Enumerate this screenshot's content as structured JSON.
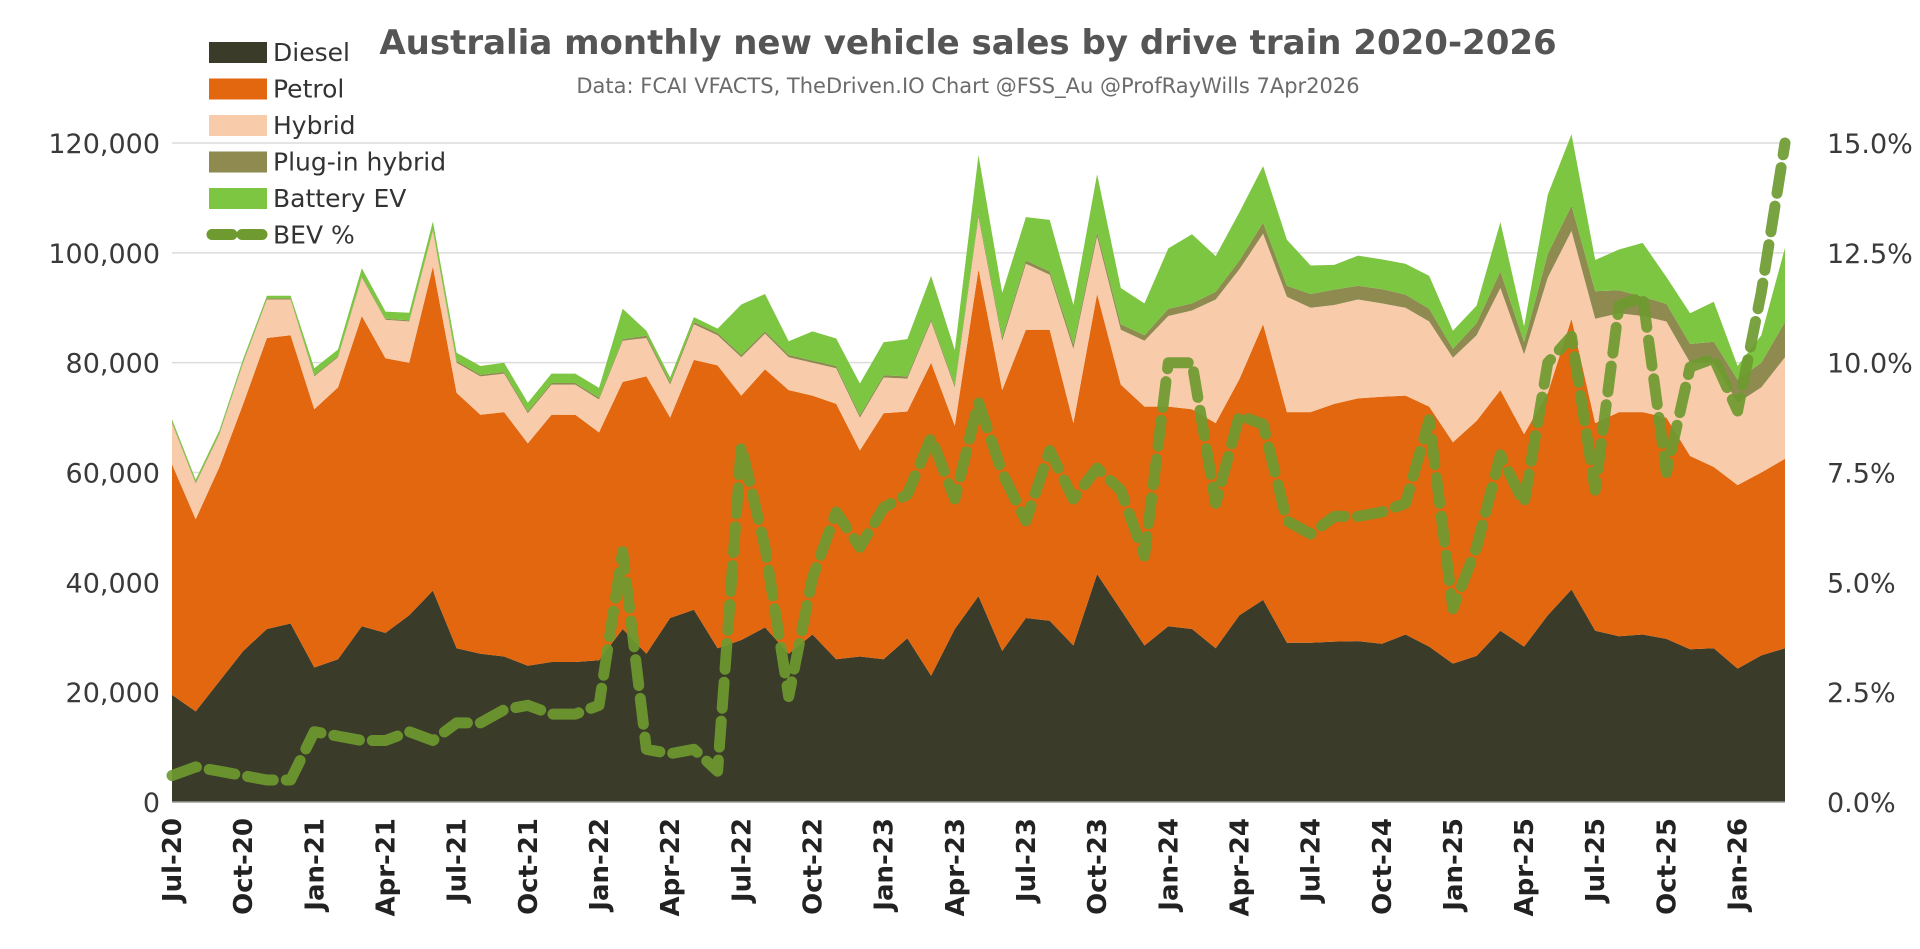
{
  "chart_data": {
    "type": "area",
    "title": "Australia monthly new vehicle sales by drive train 2020-2026",
    "subtitle": "Data: FCAI VFACTS, TheDriven.IO  Chart @FSS_Au @ProfRayWills 7Apr2026",
    "x": [
      "Jul-20",
      "Aug-20",
      "Sep-20",
      "Oct-20",
      "Nov-20",
      "Dec-20",
      "Jan-21",
      "Feb-21",
      "Mar-21",
      "Apr-21",
      "May-21",
      "Jun-21",
      "Jul-21",
      "Aug-21",
      "Sep-21",
      "Oct-21",
      "Nov-21",
      "Dec-21",
      "Jan-22",
      "Feb-22",
      "Mar-22",
      "Apr-22",
      "May-22",
      "Jun-22",
      "Jul-22",
      "Aug-22",
      "Sep-22",
      "Oct-22",
      "Nov-22",
      "Dec-22",
      "Jan-23",
      "Feb-23",
      "Mar-23",
      "Apr-23",
      "May-23",
      "Jun-23",
      "Jul-23",
      "Aug-23",
      "Sep-23",
      "Oct-23",
      "Nov-23",
      "Dec-23",
      "Jan-24",
      "Feb-24",
      "Mar-24",
      "Apr-24",
      "May-24",
      "Jun-24",
      "Jul-24",
      "Aug-24",
      "Sep-24",
      "Oct-24",
      "Nov-24",
      "Dec-24",
      "Jan-25",
      "Feb-25",
      "Mar-25",
      "Apr-25",
      "May-25",
      "Jun-25",
      "Jul-25",
      "Aug-25",
      "Sep-25",
      "Oct-25",
      "Nov-25",
      "Dec-25",
      "Jan-26",
      "Feb-26",
      "Mar-26"
    ],
    "x_tick_labels": [
      "Jul-20",
      "Oct-20",
      "Jan-21",
      "Apr-21",
      "Jul-21",
      "Oct-21",
      "Jan-22",
      "Apr-22",
      "Jul-22",
      "Oct-22",
      "Jan-23",
      "Apr-23",
      "Jul-23",
      "Oct-23",
      "Jan-24",
      "Apr-24",
      "Jul-24",
      "Oct-24",
      "Jan-25",
      "Apr-25",
      "Jul-25",
      "Oct-25",
      "Jan-26"
    ],
    "series": [
      {
        "name": "Diesel",
        "color": "#3b3b2a",
        "values": [
          19500,
          16500,
          22000,
          27500,
          31500,
          32500,
          24500,
          26000,
          32000,
          30800,
          34000,
          38500,
          28000,
          27000,
          26500,
          24800,
          25500,
          25500,
          25800,
          31500,
          27000,
          33500,
          35000,
          28000,
          29500,
          31800,
          27000,
          30500,
          26000,
          26500,
          26000,
          29800,
          23000,
          31500,
          37500,
          27500,
          33500,
          33000,
          28500,
          41500,
          35000,
          28500,
          32000,
          31500,
          28000,
          34000,
          36800,
          29000,
          29000,
          29200,
          29300,
          28800,
          30500,
          28300,
          25200,
          26600,
          31200,
          28300,
          34000,
          38700,
          31200,
          30200,
          30500,
          29700,
          27800,
          28000,
          24300,
          26700,
          28000
        ]
      },
      {
        "name": "Petrol",
        "color": "#e2670f",
        "values": [
          42000,
          35000,
          39000,
          45000,
          53000,
          52500,
          47000,
          49500,
          56500,
          50000,
          46000,
          59000,
          46500,
          43500,
          44500,
          40500,
          45000,
          45000,
          41500,
          45000,
          50500,
          36500,
          45500,
          51500,
          44500,
          47000,
          48000,
          43500,
          46500,
          37500,
          44800,
          41300,
          57000,
          37000,
          59500,
          47500,
          52500,
          53000,
          40500,
          51000,
          41000,
          43500,
          40000,
          40000,
          41000,
          43000,
          50200,
          42000,
          42000,
          43300,
          44200,
          45000,
          43500,
          43700,
          40300,
          42800,
          43800,
          38700,
          40500,
          49300,
          37800,
          40800,
          40500,
          40300,
          35200,
          33000,
          33400,
          33300,
          34500
        ]
      },
      {
        "name": "Hybrid",
        "color": "#f8ccaa",
        "values": [
          7500,
          6500,
          6000,
          7500,
          7000,
          6500,
          6000,
          5500,
          7000,
          7000,
          7500,
          6500,
          5500,
          7000,
          7000,
          5500,
          5500,
          5500,
          6000,
          7500,
          7000,
          6000,
          6500,
          5500,
          7000,
          6500,
          6000,
          6000,
          6500,
          6000,
          6500,
          6000,
          7500,
          7000,
          9500,
          9000,
          12000,
          10000,
          13500,
          10500,
          10000,
          12000,
          16500,
          18000,
          22500,
          20000,
          16500,
          21000,
          19000,
          18000,
          18000,
          17000,
          16000,
          15500,
          15400,
          15600,
          18600,
          14500,
          21000,
          16000,
          19000,
          18000,
          17500,
          17500,
          17000,
          19000,
          15000,
          15500,
          18500
        ]
      },
      {
        "name": "Plug-in hybrid",
        "color": "#8e8a50",
        "values": [
          200,
          200,
          200,
          200,
          200,
          200,
          200,
          200,
          200,
          200,
          200,
          200,
          300,
          300,
          300,
          300,
          300,
          300,
          300,
          300,
          400,
          400,
          400,
          400,
          400,
          400,
          400,
          400,
          400,
          400,
          400,
          400,
          400,
          400,
          500,
          600,
          600,
          600,
          800,
          800,
          1000,
          1000,
          1300,
          1300,
          1400,
          1600,
          2000,
          2000,
          2500,
          2800,
          2500,
          2600,
          2400,
          2300,
          1600,
          2200,
          3000,
          2200,
          4300,
          4600,
          5000,
          4200,
          3500,
          3200,
          3400,
          3800,
          4200,
          4500,
          6400
        ]
      },
      {
        "name": "Battery EV",
        "color": "#7cc642",
        "values": [
          500,
          500,
          500,
          500,
          500,
          500,
          1300,
          1200,
          1500,
          1300,
          1400,
          1500,
          1500,
          1600,
          1700,
          1600,
          1700,
          1700,
          1800,
          5500,
          900,
          900,
          900,
          800,
          9200,
          6800,
          2500,
          5300,
          5000,
          5800,
          6000,
          6800,
          7900,
          6400,
          10800,
          8100,
          7900,
          9400,
          7200,
          10500,
          6600,
          5800,
          11000,
          12600,
          6500,
          8800,
          10300,
          8400,
          5200,
          4500,
          5500,
          5400,
          5600,
          6000,
          3300,
          3200,
          9000,
          2900,
          10800,
          13000,
          5700,
          7400,
          9800,
          4900,
          5600,
          7300,
          2500,
          5000,
          13500
        ]
      }
    ],
    "secondary_series": {
      "name": "BEV %",
      "color": "#6e9a30",
      "style": "dashed",
      "values": [
        0.6,
        0.8,
        0.7,
        0.6,
        0.5,
        0.5,
        1.6,
        1.5,
        1.4,
        1.4,
        1.6,
        1.4,
        1.8,
        1.8,
        2.1,
        2.2,
        2.0,
        2.0,
        2.2,
        5.7,
        1.2,
        1.1,
        1.2,
        0.7,
        8.1,
        5.8,
        2.4,
        5.1,
        6.6,
        5.8,
        6.7,
        7.0,
        8.3,
        6.9,
        9.1,
        7.5,
        6.4,
        8.0,
        6.9,
        7.6,
        7.1,
        5.6,
        10.0,
        10.0,
        6.8,
        8.8,
        8.6,
        6.4,
        6.1,
        6.5,
        6.5,
        6.6,
        6.8,
        8.7,
        4.4,
        5.8,
        7.9,
        6.8,
        10.0,
        10.6,
        7.1,
        11.3,
        11.5,
        7.5,
        9.9,
        10.1,
        8.9,
        11.6,
        15.0
      ]
    },
    "y_left": {
      "ylim": [
        0,
        120000
      ],
      "ticks": [
        "0",
        "20,000",
        "40,000",
        "60,000",
        "80,000",
        "100,000",
        "120,000"
      ]
    },
    "y_right": {
      "ylim": [
        0,
        15
      ],
      "ticks": [
        "0.0%",
        "2.5%",
        "5.0%",
        "7.5%",
        "10.0%",
        "12.5%",
        "15.0%"
      ]
    },
    "stacked": true,
    "grid": true,
    "legend": {
      "placement": "top-left",
      "items": [
        "Diesel",
        "Petrol",
        "Hybrid",
        "Plug-in hybrid",
        "Battery EV",
        "BEV %"
      ]
    },
    "xlabel": "",
    "ylabel": ""
  }
}
